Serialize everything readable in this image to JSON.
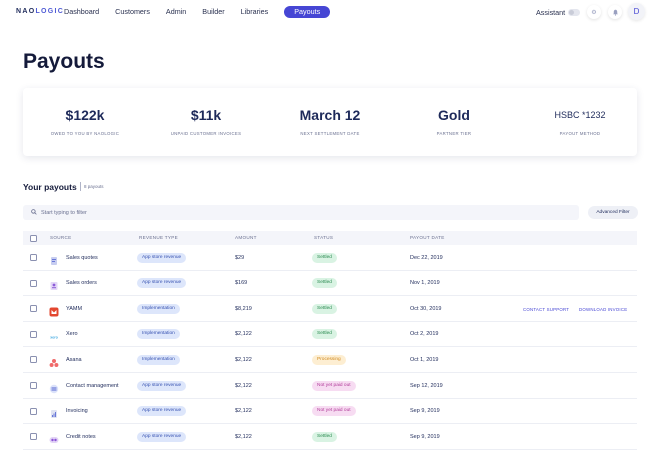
{
  "nav": {
    "logo_main": "NAO",
    "logo_accent": "LOGIC",
    "links": [
      "Dashboard",
      "Customers",
      "Admin",
      "Builder",
      "Libraries",
      "Payouts"
    ],
    "active": "Payouts",
    "assistant_label": "Assistant",
    "avatar_initial": "D"
  },
  "page": {
    "title": "Payouts"
  },
  "stats": [
    {
      "value": "$122k",
      "label": "OWED TO YOU BY NAOLOGIC"
    },
    {
      "value": "$11k",
      "label": "UNPAID CUSTOMER INVOICES"
    },
    {
      "value": "March 12",
      "label": "NEXT SETTLEMENT DATE"
    },
    {
      "value": "Gold",
      "label": "PARTNER TIER"
    },
    {
      "value": "HSBC *1232",
      "label": "PAYOUT METHOD"
    }
  ],
  "section": {
    "title": "Your payouts",
    "count": "8 payouts",
    "filter_placeholder": "Start typing to filter",
    "advanced_filter": "Advanced Filter"
  },
  "table": {
    "headers": [
      "SOURCE",
      "REVENUE TYPE",
      "AMOUNT",
      "STATUS",
      "PAYOUT DATE"
    ],
    "rows": [
      {
        "source": "Sales quotes",
        "revenue_type": "App store revenue",
        "amount": "$29",
        "status": "Settled",
        "date": "Dec 22, 2019"
      },
      {
        "source": "Sales orders",
        "revenue_type": "App store revenue",
        "amount": "$169",
        "status": "Settled",
        "date": "Nov 1, 2019"
      },
      {
        "source": "YAMM",
        "revenue_type": "Implementation",
        "amount": "$8,219",
        "status": "Settled",
        "date": "Oct 30, 2019"
      },
      {
        "source": "Xero",
        "revenue_type": "Implementation",
        "amount": "$2,122",
        "status": "Settled",
        "date": "Oct 2, 2019"
      },
      {
        "source": "Asana",
        "revenue_type": "Implementation",
        "amount": "$2,122",
        "status": "Processing",
        "date": "Oct 1, 2019"
      },
      {
        "source": "Contact management",
        "revenue_type": "App store revenue",
        "amount": "$2,122",
        "status": "Not yet paid out",
        "date": "Sep 12, 2019"
      },
      {
        "source": "Invoicing",
        "revenue_type": "App store revenue",
        "amount": "$2,122",
        "status": "Not yet paid out",
        "date": "Sep 9, 2019"
      },
      {
        "source": "Credit notes",
        "revenue_type": "App store revenue",
        "amount": "$2,122",
        "status": "Settled",
        "date": "Sep 9, 2019"
      }
    ],
    "row_actions": {
      "contact_support": "CONTACT SUPPORT",
      "download_invoice": "DOWNLOAD INVOICE"
    }
  },
  "colors": {
    "accent": "#4646d4",
    "revenue_badge_bg": "#dde6fb",
    "revenue_badge_text": "#3550b0",
    "settled_bg": "#d9f3e3",
    "settled_text": "#2a8a50",
    "processing_bg": "#fdeed2",
    "processing_text": "#d08a20",
    "unpaid_bg": "#f7dcf2",
    "unpaid_text": "#b03a98"
  }
}
